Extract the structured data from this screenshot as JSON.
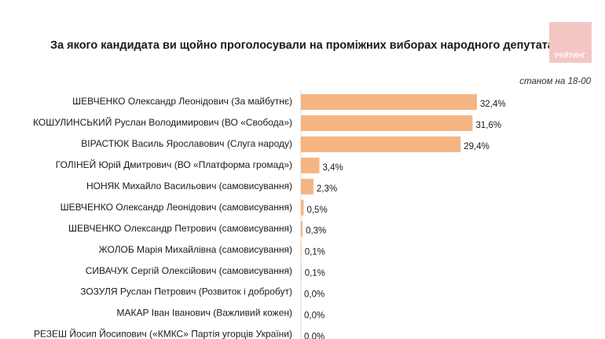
{
  "chart_data": {
    "type": "hbar",
    "title": "За якого кандидата ви щойно проголосували на проміжних виборах народного депутата?",
    "subtitle": "станом на 18-00",
    "logo": "РЕЙТИНГ",
    "color": "#f5b583",
    "categories": [
      "ШЕВЧЕНКО Олександр Леонідович (За майбутнє)",
      "КОШУЛИНСЬКИЙ Руслан Володимирович (ВО «Свобода»)",
      "ВІРАСТЮК Василь Ярославович (Слуга народу)",
      "ГОЛІНЕЙ Юрій Дмитрович (ВО «Платформа громад»)",
      "НОНЯК Михайло Васильович (самовисування)",
      "ШЕВЧЕНКО Олександр Леонідович (самовисування)",
      "ШЕВЧЕНКО Олександр Петрович (самовисування)",
      "ЖОЛОБ Марія Михайлівна (самовисування)",
      "СИВАЧУК Сергій Олексійович (самовисування)",
      "ЗОЗУЛЯ Руслан Петрович (Розвиток і добробут)",
      "МАКАР Іван Іванович (Важливий кожен)",
      "РЕЗЕШ Йосип Йосипович («КМКС» Партія угорців України)"
    ],
    "values": [
      32.4,
      31.6,
      29.4,
      3.4,
      2.3,
      0.5,
      0.3,
      0.1,
      0.1,
      0.0,
      0.0,
      0.0
    ],
    "value_labels": [
      "32,4%",
      "31,6%",
      "29,4%",
      "3,4%",
      "2,3%",
      "0,5%",
      "0,3%",
      "0,1%",
      "0,1%",
      "0,0%",
      "0,0%",
      "0,0%"
    ]
  }
}
